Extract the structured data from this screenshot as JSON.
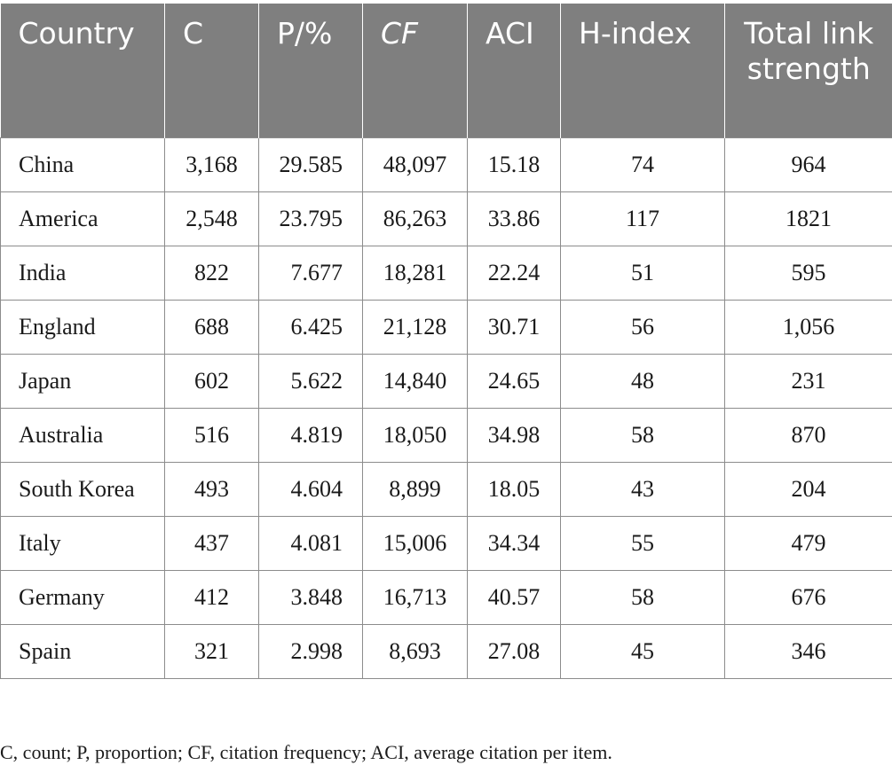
{
  "table": {
    "headers": [
      "Country",
      "C",
      "P/%",
      "CF",
      "ACI",
      "H-index",
      "Total link strength"
    ],
    "rows": [
      [
        "China",
        "3,168",
        "29.585",
        "48,097",
        "15.18",
        "74",
        "964"
      ],
      [
        "America",
        "2,548",
        "23.795",
        "86,263",
        "33.86",
        "117",
        "1821"
      ],
      [
        "India",
        "822",
        "7.677",
        "18,281",
        "22.24",
        "51",
        "595"
      ],
      [
        "England",
        "688",
        "6.425",
        "21,128",
        "30.71",
        "56",
        "1,056"
      ],
      [
        "Japan",
        "602",
        "5.622",
        "14,840",
        "24.65",
        "48",
        "231"
      ],
      [
        "Australia",
        "516",
        "4.819",
        "18,050",
        "34.98",
        "58",
        "870"
      ],
      [
        "South Korea",
        "493",
        "4.604",
        "8,899",
        "18.05",
        "43",
        "204"
      ],
      [
        "Italy",
        "437",
        "4.081",
        "15,006",
        "34.34",
        "55",
        "479"
      ],
      [
        "Germany",
        "412",
        "3.848",
        "16,713",
        "40.57",
        "58",
        "676"
      ],
      [
        "Spain",
        "321",
        "2.998",
        "8,693",
        "27.08",
        "45",
        "346"
      ]
    ]
  },
  "footnote": "C, count; P, proportion; CF, citation frequency; ACI, average citation per item."
}
